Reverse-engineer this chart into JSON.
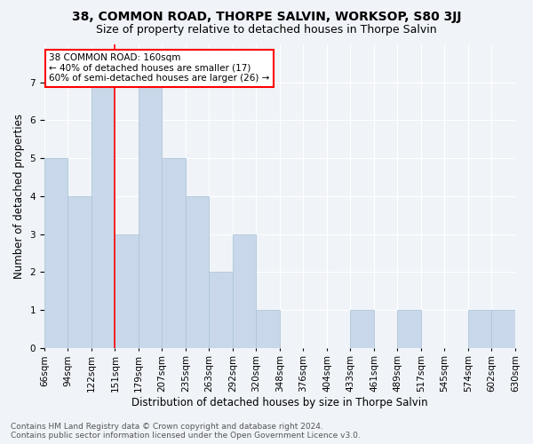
{
  "title": "38, COMMON ROAD, THORPE SALVIN, WORKSOP, S80 3JJ",
  "subtitle": "Size of property relative to detached houses in Thorpe Salvin",
  "xlabel": "Distribution of detached houses by size in Thorpe Salvin",
  "ylabel": "Number of detached properties",
  "bin_labels": [
    "66sqm",
    "94sqm",
    "122sqm",
    "151sqm",
    "179sqm",
    "207sqm",
    "235sqm",
    "263sqm",
    "292sqm",
    "320sqm",
    "348sqm",
    "376sqm",
    "404sqm",
    "433sqm",
    "461sqm",
    "489sqm",
    "517sqm",
    "545sqm",
    "574sqm",
    "602sqm",
    "630sqm"
  ],
  "values": [
    5,
    4,
    7,
    3,
    7,
    5,
    4,
    2,
    3,
    1,
    0,
    0,
    0,
    1,
    0,
    1,
    0,
    0,
    1,
    1
  ],
  "bar_color": "#c8d8ea",
  "bar_edge_color": "#aec6d8",
  "ref_line_color": "red",
  "ref_line_x": 2.5,
  "annotation_text": "38 COMMON ROAD: 160sqm\n← 40% of detached houses are smaller (17)\n60% of semi-detached houses are larger (26) →",
  "annotation_box_color": "white",
  "annotation_box_edge": "red",
  "ylim": [
    0,
    8
  ],
  "yticks": [
    0,
    1,
    2,
    3,
    4,
    5,
    6,
    7
  ],
  "background_color": "#f0f4f8",
  "footer": "Contains HM Land Registry data © Crown copyright and database right 2024.\nContains public sector information licensed under the Open Government Licence v3.0.",
  "title_fontsize": 10,
  "subtitle_fontsize": 9,
  "xlabel_fontsize": 8.5,
  "ylabel_fontsize": 8.5,
  "tick_fontsize": 7.5,
  "footer_fontsize": 6.5
}
